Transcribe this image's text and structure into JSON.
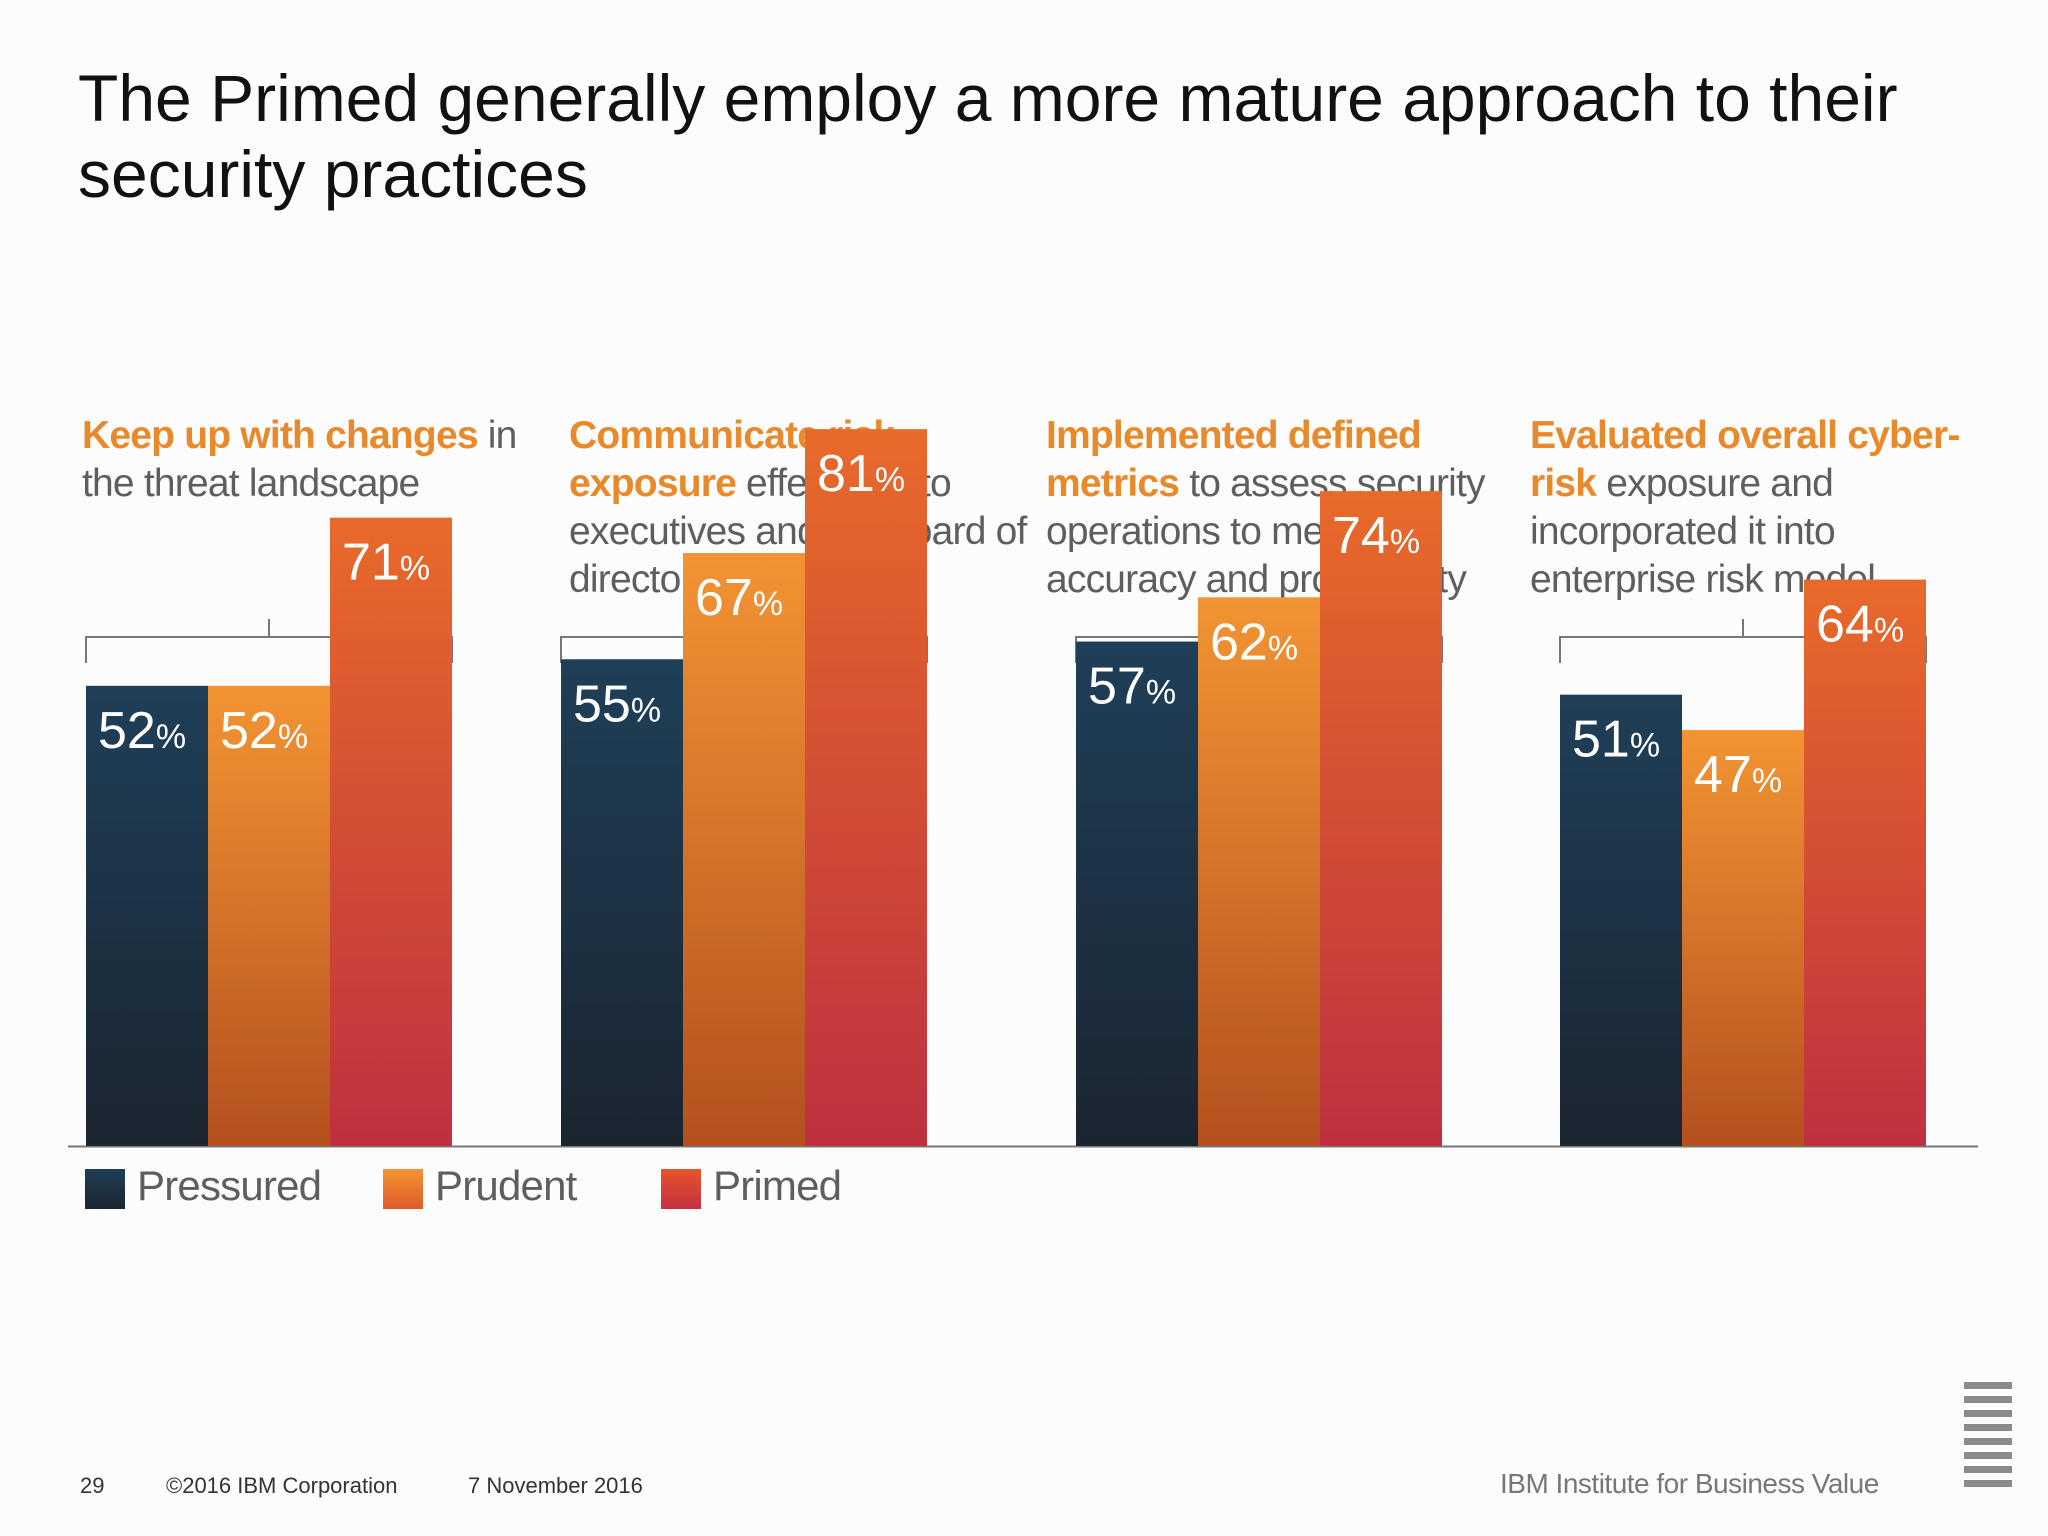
{
  "slide": {
    "title": "The Primed generally employ a more mature approach to their security practices",
    "page_number": "29",
    "copyright": "©2016 IBM Corporation",
    "date": "7 November 2016",
    "brand": "IBM Institute for Business Value",
    "logo": "IBM"
  },
  "captions": [
    {
      "highlight": "Keep up with changes",
      "rest": " in the threat landscape"
    },
    {
      "highlight": "Communicate risk exposure",
      "rest": " effectively to executives and the board of directors"
    },
    {
      "highlight": "Implemented defined metrics",
      "rest": " to assess security operations to measure accuracy and productivity"
    },
    {
      "highlight": "Evaluated overall cyber-risk",
      "rest": " exposure and incorporated it into enterprise risk model"
    }
  ],
  "colors": {
    "pressured": [
      "#1f3f58",
      "#1b2530"
    ],
    "prudent": [
      "#f29433",
      "#b5501f"
    ],
    "primed": [
      "#e86a2a",
      "#bf3040"
    ],
    "highlight": "#e88a2b",
    "axis": "#777777"
  },
  "chart_data": {
    "type": "bar",
    "title": "The Primed generally employ a more mature approach to their security practices",
    "categories": [
      "Keep up with changes in the threat landscape",
      "Communicate risk exposure effectively to executives and the board of directors",
      "Implemented defined metrics to assess security operations to measure accuracy and productivity",
      "Evaluated overall cyber-risk exposure and incorporated it into enterprise risk model"
    ],
    "series": [
      {
        "name": "Pressured",
        "values": [
          52,
          55,
          57,
          51
        ]
      },
      {
        "name": "Prudent",
        "values": [
          52,
          67,
          62,
          47
        ]
      },
      {
        "name": "Primed",
        "values": [
          71,
          81,
          74,
          64
        ]
      }
    ],
    "unit": "%",
    "ylim": [
      0,
      100
    ],
    "grid": false,
    "legend": "bottom-left",
    "xlabel": "",
    "ylabel": ""
  }
}
